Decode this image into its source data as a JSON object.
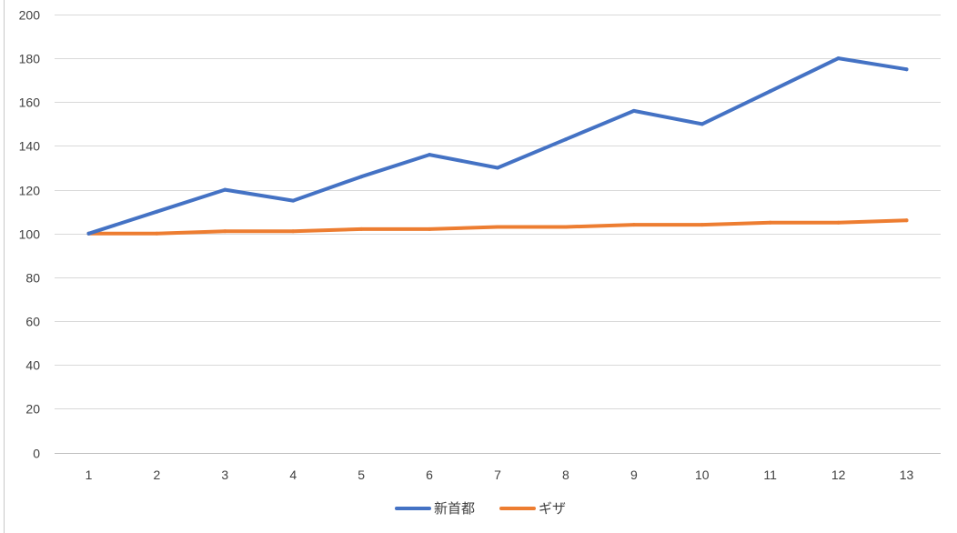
{
  "chart_data": {
    "type": "line",
    "title": "",
    "xlabel": "",
    "ylabel": "",
    "x": [
      1,
      2,
      3,
      4,
      5,
      6,
      7,
      8,
      9,
      10,
      11,
      12,
      13
    ],
    "ylim": [
      0,
      200
    ],
    "y_ticks": [
      0,
      20,
      40,
      60,
      80,
      100,
      120,
      140,
      160,
      180,
      200
    ],
    "grid": true,
    "legend_position": "bottom",
    "series": [
      {
        "name": "新首都",
        "color": "#4472c4",
        "values": [
          100,
          110,
          120,
          115,
          126,
          136,
          130,
          143,
          156,
          150,
          165,
          180,
          175
        ]
      },
      {
        "name": "ギザ",
        "color": "#ed7d31",
        "values": [
          100,
          100,
          101,
          101,
          102,
          102,
          103,
          103,
          104,
          104,
          105,
          105,
          106
        ]
      }
    ]
  }
}
